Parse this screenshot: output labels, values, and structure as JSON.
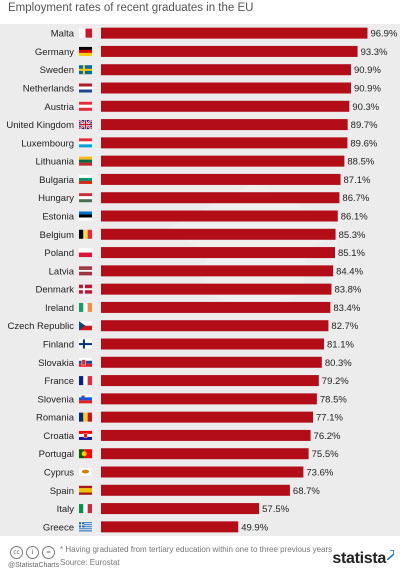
{
  "subtitle": "Employment rates of recent graduates in the EU",
  "chart_data": {
    "type": "bar",
    "orientation": "horizontal",
    "title": "",
    "subtitle": "Employment rates of recent graduates in the EU",
    "xlabel": "",
    "ylabel": "",
    "xlim": [
      0,
      100
    ],
    "grid": false,
    "legend": "none",
    "bar_color": "#b30d18",
    "categories": [
      "Malta",
      "Germany",
      "Sweden",
      "Netherlands",
      "Austria",
      "United Kingdom",
      "Luxembourg",
      "Lithuania",
      "Bulgaria",
      "Hungary",
      "Estonia",
      "Belgium",
      "Poland",
      "Latvia",
      "Denmark",
      "Ireland",
      "Czech Republic",
      "Finland",
      "Slovakia",
      "France",
      "Slovenia",
      "Romania",
      "Croatia",
      "Portugal",
      "Cyprus",
      "Spain",
      "Italy",
      "Greece"
    ],
    "values": [
      96.9,
      93.3,
      90.9,
      90.9,
      90.3,
      89.7,
      89.6,
      88.5,
      87.1,
      86.7,
      86.1,
      85.3,
      85.1,
      84.4,
      83.8,
      83.4,
      82.7,
      81.1,
      80.3,
      79.2,
      78.5,
      77.1,
      76.2,
      75.5,
      73.6,
      68.7,
      57.5,
      49.9
    ],
    "value_labels": [
      "96.9%",
      "93.3%",
      "90.9%",
      "90.9%",
      "90.3%",
      "89.7%",
      "89.6%",
      "88.5%",
      "87.1%",
      "86.7%",
      "86.1%",
      "85.3%",
      "85.1%",
      "84.4%",
      "83.8%",
      "83.4%",
      "82.7%",
      "81.1%",
      "80.3%",
      "79.2%",
      "78.5%",
      "77.1%",
      "76.2%",
      "75.5%",
      "73.6%",
      "68.7%",
      "57.5%",
      "49.9%"
    ],
    "flag_icons": [
      "malta-flag-icon",
      "germany-flag-icon",
      "sweden-flag-icon",
      "netherlands-flag-icon",
      "austria-flag-icon",
      "united-kingdom-flag-icon",
      "luxembourg-flag-icon",
      "lithuania-flag-icon",
      "bulgaria-flag-icon",
      "hungary-flag-icon",
      "estonia-flag-icon",
      "belgium-flag-icon",
      "poland-flag-icon",
      "latvia-flag-icon",
      "denmark-flag-icon",
      "ireland-flag-icon",
      "czech-republic-flag-icon",
      "finland-flag-icon",
      "slovakia-flag-icon",
      "france-flag-icon",
      "slovenia-flag-icon",
      "romania-flag-icon",
      "croatia-flag-icon",
      "portugal-flag-icon",
      "cyprus-flag-icon",
      "spain-flag-icon",
      "italy-flag-icon",
      "greece-flag-icon"
    ],
    "background_icon": "graduation-cap-icon"
  },
  "footer": {
    "license_icons": [
      "cc-icon",
      "by-icon",
      "nd-icon"
    ],
    "license_glyphs": [
      "cc",
      "i",
      "="
    ],
    "handle": "@StatistaCharts",
    "note": "* Having graduated from tertiary education within one to three previous years",
    "source": "Source: Eurostat",
    "logo": "statista",
    "logo_icon": "statista-arrow-icon"
  }
}
